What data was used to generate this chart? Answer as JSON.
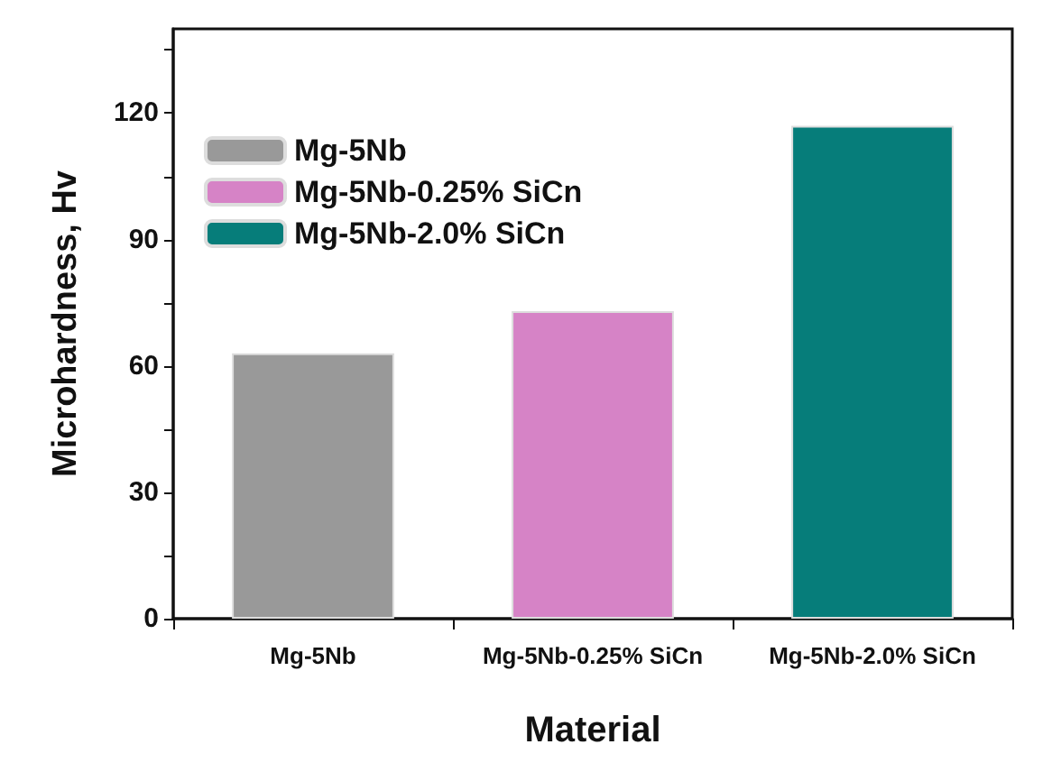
{
  "chart_data": {
    "type": "bar",
    "xlabel": "Material",
    "ylabel": "Microhardness, Hv",
    "categories": [
      "Mg-5Nb",
      "Mg-5Nb-0.25% SiCn",
      "Mg-5Nb-2.0% SiCn"
    ],
    "series": [
      {
        "name": "Mg-5Nb",
        "color": "#999999",
        "values": [
          63,
          null,
          null
        ]
      },
      {
        "name": "Mg-5Nb-0.25% SiCn",
        "color": "#d683c6",
        "values": [
          null,
          73,
          null
        ]
      },
      {
        "name": "Mg-5Nb-2.0% SiCn",
        "color": "#067d7a",
        "values": [
          null,
          null,
          117
        ]
      }
    ],
    "ylim": [
      0,
      140
    ],
    "yticks": [
      0,
      {
        "value": 15,
        "label": null
      },
      30,
      {
        "value": 45,
        "label": null
      },
      60,
      {
        "value": 75,
        "label": null
      },
      90,
      {
        "value": 105,
        "label": null
      },
      120,
      {
        "value": 135,
        "label": null
      }
    ],
    "grid": false,
    "legend": "top left"
  }
}
